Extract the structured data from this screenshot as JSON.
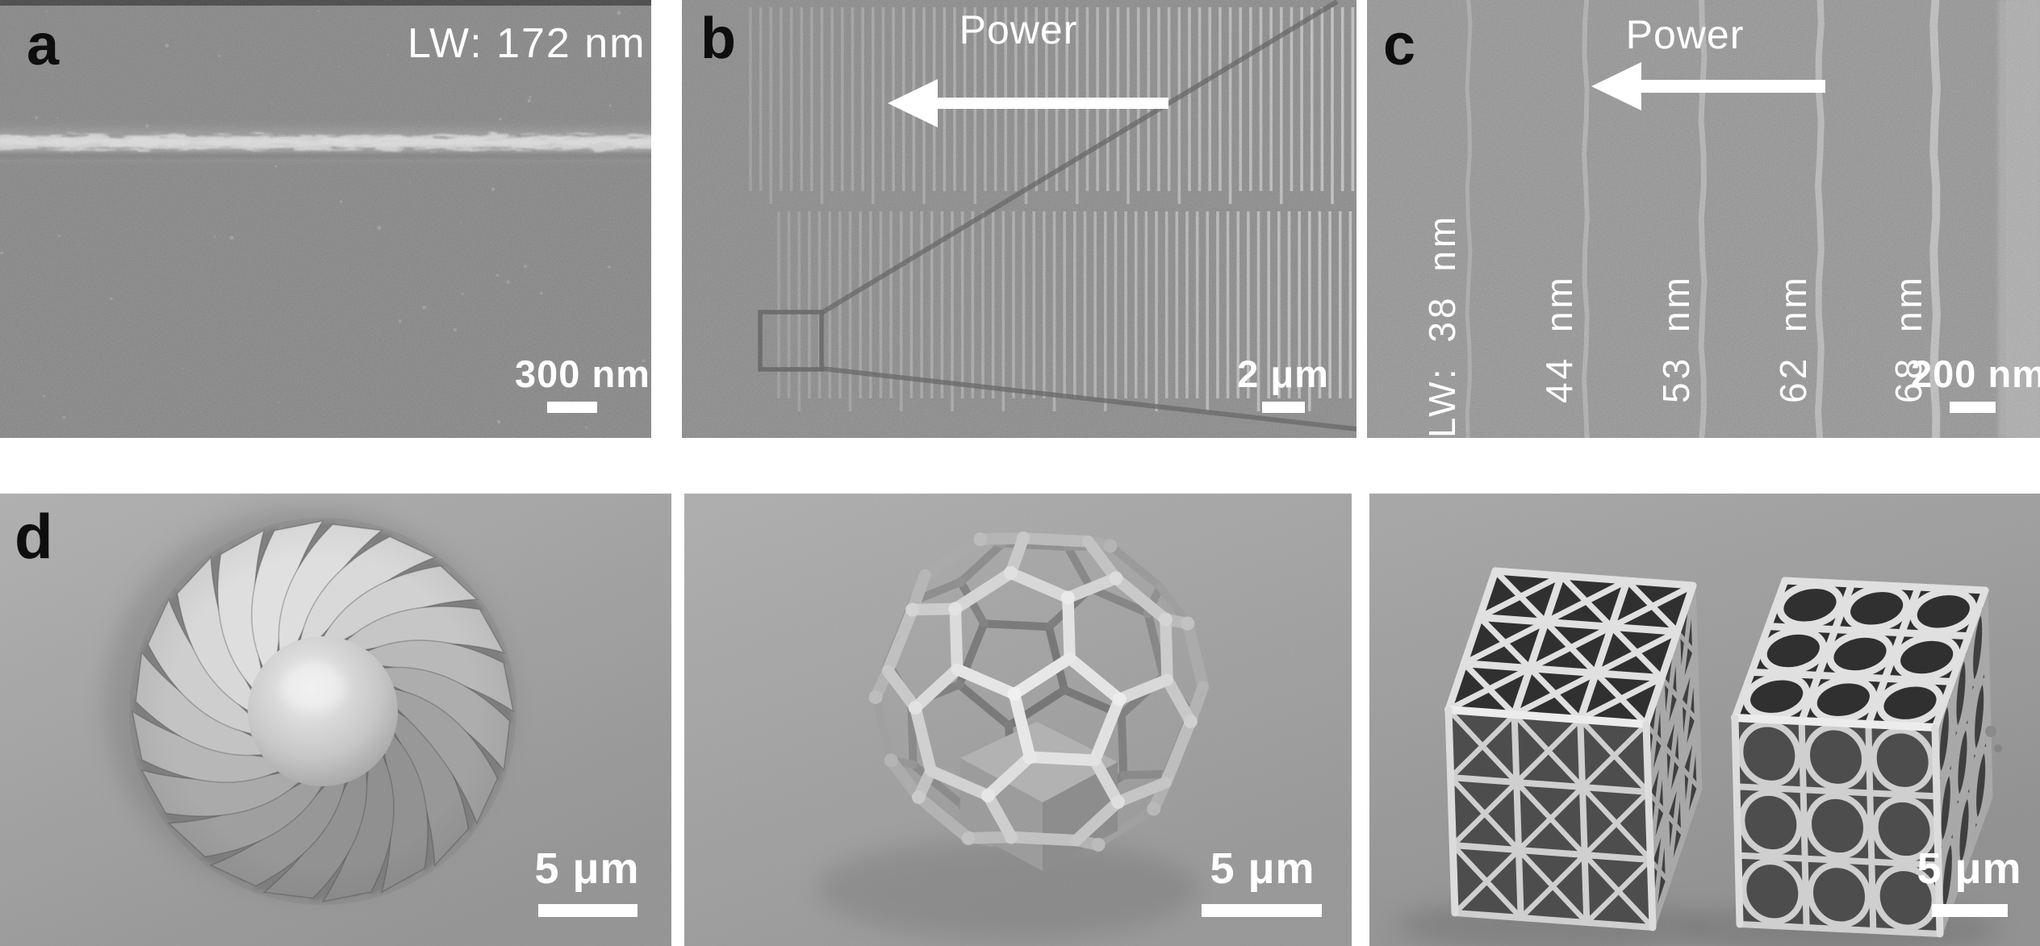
{
  "palette": {
    "page_background": "#ffffff",
    "sem_gray_a": "#7c7c7c",
    "sem_gray_b": "#828282",
    "sem_gray_c": "#8e8e8e",
    "sem_gray_d": "#a2a2a2",
    "annotation_white": "#ffffff",
    "label_black": "#0e0e0e"
  },
  "panel_a": {
    "label": "a",
    "linewidth_annotation": "LW: 172 nm",
    "scale_bar_label": "300 nm"
  },
  "panel_b": {
    "label": "b",
    "arrow_label": "Power",
    "scale_bar_label": "2 μm"
  },
  "panel_c": {
    "label": "c",
    "arrow_label": "Power",
    "line_labels": [
      "LW: 38 nm",
      "44 nm",
      "53 nm",
      "62 nm",
      "68 nm"
    ],
    "scale_bar_label": "200 nm"
  },
  "panel_d": {
    "label": "d",
    "scale_bar_labels": [
      "5 μm",
      "5 μm",
      "5 μm"
    ]
  }
}
